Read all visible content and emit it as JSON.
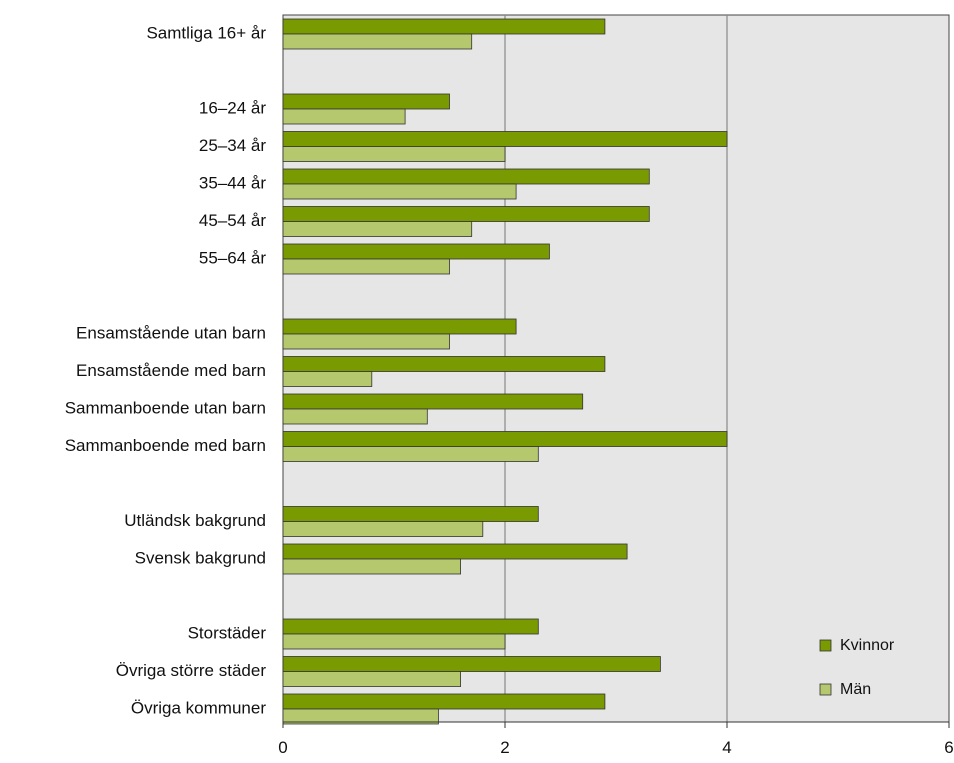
{
  "chart_data": {
    "type": "bar",
    "orientation": "horizontal",
    "xlim": [
      0,
      6
    ],
    "xticks": [
      0,
      2,
      4,
      6
    ],
    "grid": "vertical",
    "legend_position": "bottom-right",
    "categories": [
      "Samtliga 16+ år",
      "16–24 år",
      "25–34 år",
      "35–44 år",
      "45–54 år",
      "55–64 år",
      "Ensamstående utan barn",
      "Ensamstående med barn",
      "Sammanboende utan barn",
      "Sammanboende med barn",
      "Utländsk bakgrund",
      "Svensk bakgrund",
      "Storstäder",
      "Övriga större städer",
      "Övriga kommuner"
    ],
    "groups": [
      [
        0
      ],
      [
        1,
        2,
        3,
        4,
        5
      ],
      [
        6,
        7,
        8,
        9
      ],
      [
        10,
        11
      ],
      [
        12,
        13,
        14
      ]
    ],
    "series": [
      {
        "name": "Kvinnor",
        "color": "#7a9a01",
        "values": [
          2.9,
          1.5,
          4.0,
          3.3,
          3.3,
          2.4,
          2.1,
          2.9,
          2.7,
          4.0,
          2.3,
          3.1,
          2.3,
          3.4,
          2.9
        ]
      },
      {
        "name": "Män",
        "color": "#b5c86e",
        "values": [
          1.7,
          1.1,
          2.0,
          2.1,
          1.7,
          1.5,
          1.5,
          0.8,
          1.3,
          2.3,
          1.8,
          1.6,
          2.0,
          1.6,
          1.4
        ]
      }
    ],
    "colors": {
      "plot_background": "#e6e6e6",
      "gridline": "#888888"
    }
  }
}
